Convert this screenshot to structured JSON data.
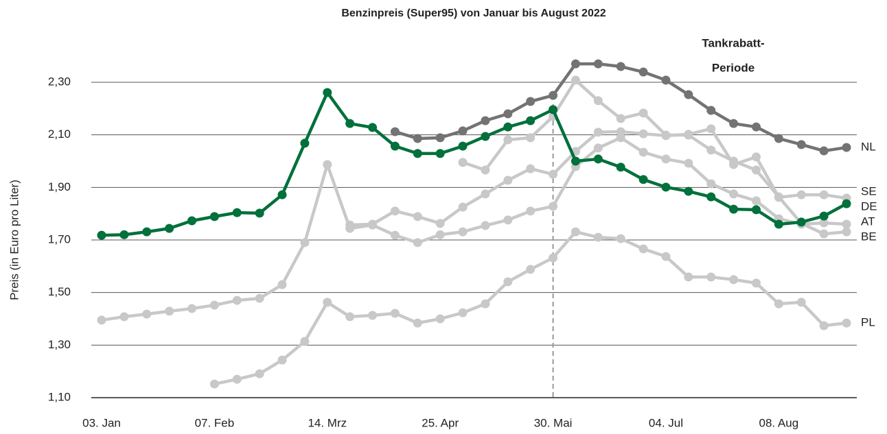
{
  "chart_data": {
    "type": "line",
    "title": "Benzinpreis (Super95) von Januar bis August 2022",
    "y_label": "Preis (in Euro pro Liter)",
    "annotation": [
      "Tankrabatt-",
      "Periode"
    ],
    "reference_category": "30. Mai",
    "categories": [
      "03. Jan",
      null,
      null,
      null,
      null,
      "07. Feb",
      null,
      null,
      null,
      null,
      "14. Mrz",
      null,
      null,
      null,
      null,
      "25. Apr",
      null,
      null,
      null,
      null,
      "30. Mai",
      null,
      null,
      null,
      null,
      "04. Jul",
      null,
      null,
      null,
      null,
      "08. Aug",
      null,
      null,
      null
    ],
    "ylim": [
      1.1,
      2.4
    ],
    "yticks": [
      {
        "value": 1.1,
        "label": "1,10"
      },
      {
        "value": 1.3,
        "label": "1,30"
      },
      {
        "value": 1.5,
        "label": "1,50"
      },
      {
        "value": 1.7,
        "label": "1,70"
      },
      {
        "value": 1.9,
        "label": "1,90"
      },
      {
        "value": 2.1,
        "label": "2,10"
      },
      {
        "value": 2.3,
        "label": "2,30"
      }
    ],
    "grid": true,
    "series": [
      {
        "name": "PL",
        "color": "#c8c8c8",
        "values": [
          null,
          null,
          null,
          null,
          null,
          1.152,
          1.17,
          1.191,
          1.243,
          1.314,
          1.463,
          1.408,
          1.413,
          1.421,
          1.384,
          1.4,
          1.423,
          1.457,
          1.541,
          1.588,
          1.632,
          1.731,
          1.71,
          1.705,
          1.666,
          1.637,
          1.559,
          1.559,
          1.549,
          1.536,
          1.457,
          1.463,
          1.374,
          1.384
        ]
      },
      {
        "name": "AT",
        "color": "#c8c8c8",
        "values": [
          1.395,
          1.408,
          1.418,
          1.429,
          1.439,
          1.452,
          1.47,
          1.478,
          1.53,
          1.69,
          1.987,
          1.744,
          1.757,
          1.718,
          1.69,
          1.72,
          1.731,
          1.755,
          1.776,
          1.81,
          1.828,
          1.979,
          2.05,
          2.089,
          2.034,
          2.008,
          1.992,
          1.914,
          1.875,
          1.849,
          1.781,
          1.76,
          1.765,
          1.76
        ]
      },
      {
        "name": "SE",
        "color": "#c8c8c8",
        "values": [
          null,
          null,
          null,
          null,
          null,
          null,
          null,
          null,
          null,
          null,
          null,
          1.757,
          1.76,
          1.81,
          1.789,
          1.763,
          1.825,
          1.875,
          1.927,
          1.971,
          1.95,
          2.037,
          2.11,
          2.112,
          2.104,
          2.097,
          2.102,
          2.123,
          1.987,
          2.016,
          1.862,
          1.872,
          1.872,
          1.859
        ]
      },
      {
        "name": "BE",
        "color": "#c8c8c8",
        "values": [
          null,
          null,
          null,
          null,
          null,
          null,
          null,
          null,
          null,
          null,
          null,
          null,
          null,
          null,
          null,
          null,
          1.995,
          1.966,
          2.081,
          2.089,
          2.17,
          2.308,
          2.23,
          2.162,
          2.183,
          2.099,
          2.099,
          2.042,
          2.0,
          1.966,
          1.864,
          1.763,
          1.723,
          1.731
        ]
      },
      {
        "name": "NL",
        "color": "#737373",
        "values": [
          null,
          null,
          null,
          null,
          null,
          null,
          null,
          null,
          null,
          null,
          null,
          null,
          null,
          2.112,
          2.086,
          2.089,
          2.115,
          2.154,
          2.18,
          2.227,
          2.25,
          2.37,
          2.37,
          2.36,
          2.339,
          2.308,
          2.253,
          2.193,
          2.143,
          2.13,
          2.086,
          2.063,
          2.039,
          2.052
        ]
      },
      {
        "name": "DE",
        "color": "#00703c",
        "values": [
          1.718,
          1.72,
          1.731,
          1.744,
          1.773,
          1.789,
          1.804,
          1.802,
          1.872,
          2.068,
          2.261,
          2.143,
          2.128,
          2.057,
          2.029,
          2.029,
          2.057,
          2.094,
          2.13,
          2.154,
          2.196,
          2.0,
          2.008,
          1.977,
          1.93,
          1.901,
          1.885,
          1.864,
          1.817,
          1.815,
          1.76,
          1.768,
          1.791,
          1.838
        ]
      }
    ]
  }
}
